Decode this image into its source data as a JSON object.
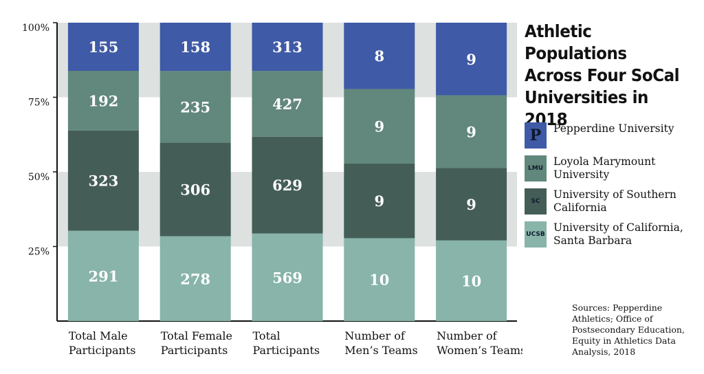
{
  "chart_data": {
    "type": "bar",
    "stacked": true,
    "normalized": true,
    "title": "Athletic Populations Across Four SoCal Universities in 2018",
    "y_ticks": [
      "100%",
      "75%",
      "50%",
      "25%"
    ],
    "ylim": [
      0,
      100
    ],
    "categories": [
      "Total Male Participants",
      "Total Female Participants",
      "Total Participants",
      "Number of Men’s Teams",
      "Number of Women’s Teams"
    ],
    "series": [
      {
        "name": "University of California, Santa Barbara",
        "color": "#88b4aa",
        "icon": "ucsb-logo-icon",
        "values": [
          291,
          278,
          569,
          10,
          10
        ]
      },
      {
        "name": "University of Southern California",
        "color": "#455d57",
        "icon": "usc-logo-icon",
        "values": [
          323,
          306,
          629,
          9,
          9
        ]
      },
      {
        "name": "Loyola Marymount University",
        "color": "#62877c",
        "icon": "lmu-logo-icon",
        "values": [
          192,
          235,
          427,
          9,
          9
        ]
      },
      {
        "name": "Pepperdine University",
        "color": "#3f5aa6",
        "icon": "pepperdine-logo-icon",
        "values": [
          155,
          158,
          313,
          8,
          9
        ]
      }
    ],
    "grid_band_color": "#dde1e0",
    "legend_position": "right"
  },
  "legend": {
    "items": [
      {
        "label": "Pepperdine University",
        "swatch_text": "P",
        "color": "#3f5aa6"
      },
      {
        "label": "Loyola Marymount University",
        "swatch_text": "LMU",
        "color": "#62877c"
      },
      {
        "label": "University of Southern California",
        "swatch_text": "SC",
        "color": "#455d57"
      },
      {
        "label": "University of California, Santa Barbara",
        "swatch_text": "UCSB",
        "color": "#88b4aa"
      }
    ]
  },
  "sources": "Sources: Pepperdine Athletics; Office of Postsecondary Education, Equity in Athletics Data Analysis, 2018"
}
